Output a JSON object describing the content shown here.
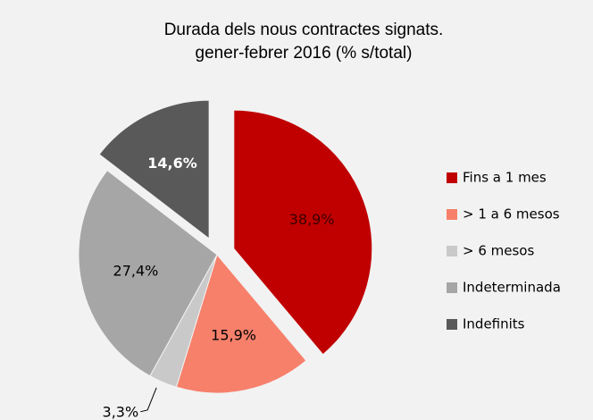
{
  "chart_data": {
    "type": "pie",
    "title": "Durada dels nous contractes signats.",
    "subtitle": "gener-febrer 2016 (% s/total)",
    "categories": [
      "Fins a 1 mes",
      "> 1 a 6 mesos",
      "> 6 mesos",
      "Indeterminada",
      "Indefinits"
    ],
    "values": [
      38.9,
      15.9,
      3.3,
      27.4,
      14.6
    ],
    "value_labels": [
      "38,9%",
      "15,9%",
      "3,3%",
      "27,4%",
      "14,6%"
    ],
    "colors": [
      "#c00000",
      "#f7806b",
      "#c9c9c9",
      "#a6a6a6",
      "#595959"
    ],
    "label_colors": [
      "#3a0000",
      "#000000",
      "#000000",
      "#000000",
      "#ffffff"
    ],
    "exploded": [
      true,
      false,
      false,
      false,
      true
    ],
    "legend": "right"
  }
}
